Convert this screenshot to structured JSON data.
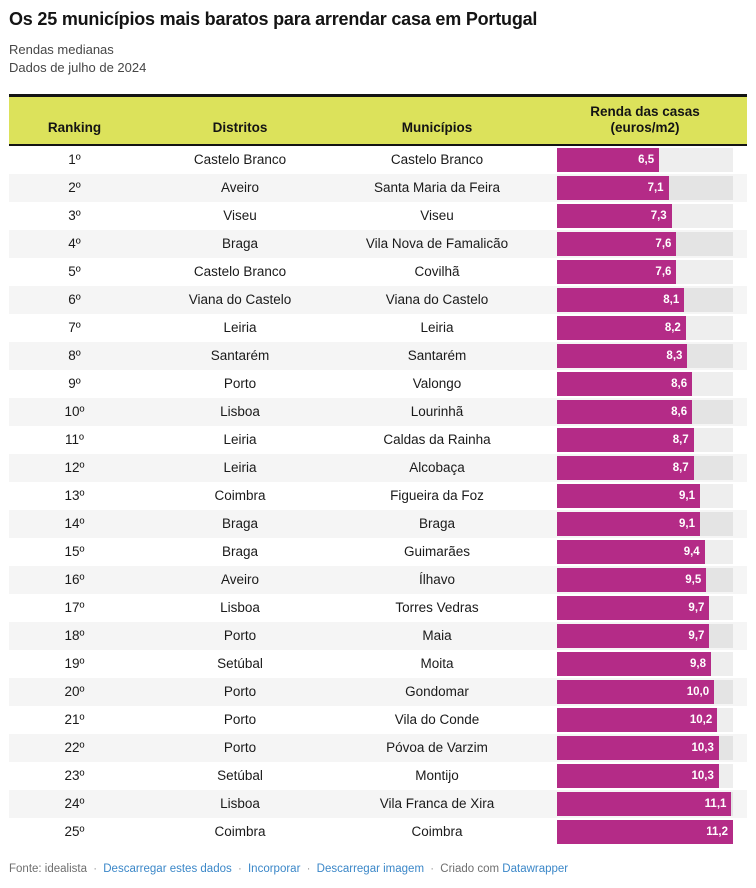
{
  "header": {
    "title": "Os 25 municípios mais baratos para arrendar casa em Portugal",
    "subtitle_line1": "Rendas medianas",
    "subtitle_line2": "Dados de julho de 2024"
  },
  "chart_data": {
    "type": "table",
    "title": "Os 25 municípios mais baratos para arrendar casa em Portugal",
    "subtitle": [
      "Rendas medianas",
      "Dados de julho de 2024"
    ],
    "columns": [
      "Ranking",
      "Distritos",
      "Municípios",
      "Renda das casas\n(euros/m2)"
    ],
    "bar_column": "Renda das casas (euros/m2)",
    "bar_axis_min": 0,
    "bar_axis_max": 11.2,
    "rows": [
      {
        "ranking": "1º",
        "distrito": "Castelo Branco",
        "municipio": "Castelo Branco",
        "valor": 6.5,
        "valor_label": "6,5"
      },
      {
        "ranking": "2º",
        "distrito": "Aveiro",
        "municipio": "Santa Maria da Feira",
        "valor": 7.1,
        "valor_label": "7,1"
      },
      {
        "ranking": "3º",
        "distrito": "Viseu",
        "municipio": "Viseu",
        "valor": 7.3,
        "valor_label": "7,3"
      },
      {
        "ranking": "4º",
        "distrito": "Braga",
        "municipio": "Vila Nova de Famalicão",
        "valor": 7.6,
        "valor_label": "7,6"
      },
      {
        "ranking": "5º",
        "distrito": "Castelo Branco",
        "municipio": "Covilhã",
        "valor": 7.6,
        "valor_label": "7,6"
      },
      {
        "ranking": "6º",
        "distrito": "Viana do Castelo",
        "municipio": "Viana do Castelo",
        "valor": 8.1,
        "valor_label": "8,1"
      },
      {
        "ranking": "7º",
        "distrito": "Leiria",
        "municipio": "Leiria",
        "valor": 8.2,
        "valor_label": "8,2"
      },
      {
        "ranking": "8º",
        "distrito": "Santarém",
        "municipio": "Santarém",
        "valor": 8.3,
        "valor_label": "8,3"
      },
      {
        "ranking": "9º",
        "distrito": "Porto",
        "municipio": "Valongo",
        "valor": 8.6,
        "valor_label": "8,6"
      },
      {
        "ranking": "10º",
        "distrito": "Lisboa",
        "municipio": "Lourinhã",
        "valor": 8.6,
        "valor_label": "8,6"
      },
      {
        "ranking": "11º",
        "distrito": "Leiria",
        "municipio": "Caldas da Rainha",
        "valor": 8.7,
        "valor_label": "8,7"
      },
      {
        "ranking": "12º",
        "distrito": "Leiria",
        "municipio": "Alcobaça",
        "valor": 8.7,
        "valor_label": "8,7"
      },
      {
        "ranking": "13º",
        "distrito": "Coimbra",
        "municipio": "Figueira da Foz",
        "valor": 9.1,
        "valor_label": "9,1"
      },
      {
        "ranking": "14º",
        "distrito": "Braga",
        "municipio": "Braga",
        "valor": 9.1,
        "valor_label": "9,1"
      },
      {
        "ranking": "15º",
        "distrito": "Braga",
        "municipio": "Guimarães",
        "valor": 9.4,
        "valor_label": "9,4"
      },
      {
        "ranking": "16º",
        "distrito": "Aveiro",
        "municipio": "Ílhavo",
        "valor": 9.5,
        "valor_label": "9,5"
      },
      {
        "ranking": "17º",
        "distrito": "Lisboa",
        "municipio": "Torres Vedras",
        "valor": 9.7,
        "valor_label": "9,7"
      },
      {
        "ranking": "18º",
        "distrito": "Porto",
        "municipio": "Maia",
        "valor": 9.7,
        "valor_label": "9,7"
      },
      {
        "ranking": "19º",
        "distrito": "Setúbal",
        "municipio": "Moita",
        "valor": 9.8,
        "valor_label": "9,8"
      },
      {
        "ranking": "20º",
        "distrito": "Porto",
        "municipio": "Gondomar",
        "valor": 10.0,
        "valor_label": "10,0"
      },
      {
        "ranking": "21º",
        "distrito": "Porto",
        "municipio": "Vila do Conde",
        "valor": 10.2,
        "valor_label": "10,2"
      },
      {
        "ranking": "22º",
        "distrito": "Porto",
        "municipio": "Póvoa de Varzim",
        "valor": 10.3,
        "valor_label": "10,3"
      },
      {
        "ranking": "23º",
        "distrito": "Setúbal",
        "municipio": "Montijo",
        "valor": 10.3,
        "valor_label": "10,3"
      },
      {
        "ranking": "24º",
        "distrito": "Lisboa",
        "municipio": "Vila Franca de Xira",
        "valor": 11.1,
        "valor_label": "11,1"
      },
      {
        "ranking": "25º",
        "distrito": "Coimbra",
        "municipio": "Coimbra",
        "valor": 11.2,
        "valor_label": "11,2"
      }
    ]
  },
  "colors": {
    "header_bg": "#dce25b",
    "header_border": "#141414",
    "bar_fill": "#b42b87",
    "bar_value_text": "#ffffff",
    "row_alt_bg": "#f5f5f5",
    "link_blue": "#3b87c8",
    "footer_gray": "#6f6f6f"
  },
  "footer": {
    "source": "Fonte: idealista",
    "separator": "·",
    "download_data_link": "Descarregar estes dados",
    "embed_link": "Incorporar",
    "download_image_link": "Descarregar imagem",
    "created_with": "Criado com",
    "datawrapper_link": "Datawrapper"
  }
}
